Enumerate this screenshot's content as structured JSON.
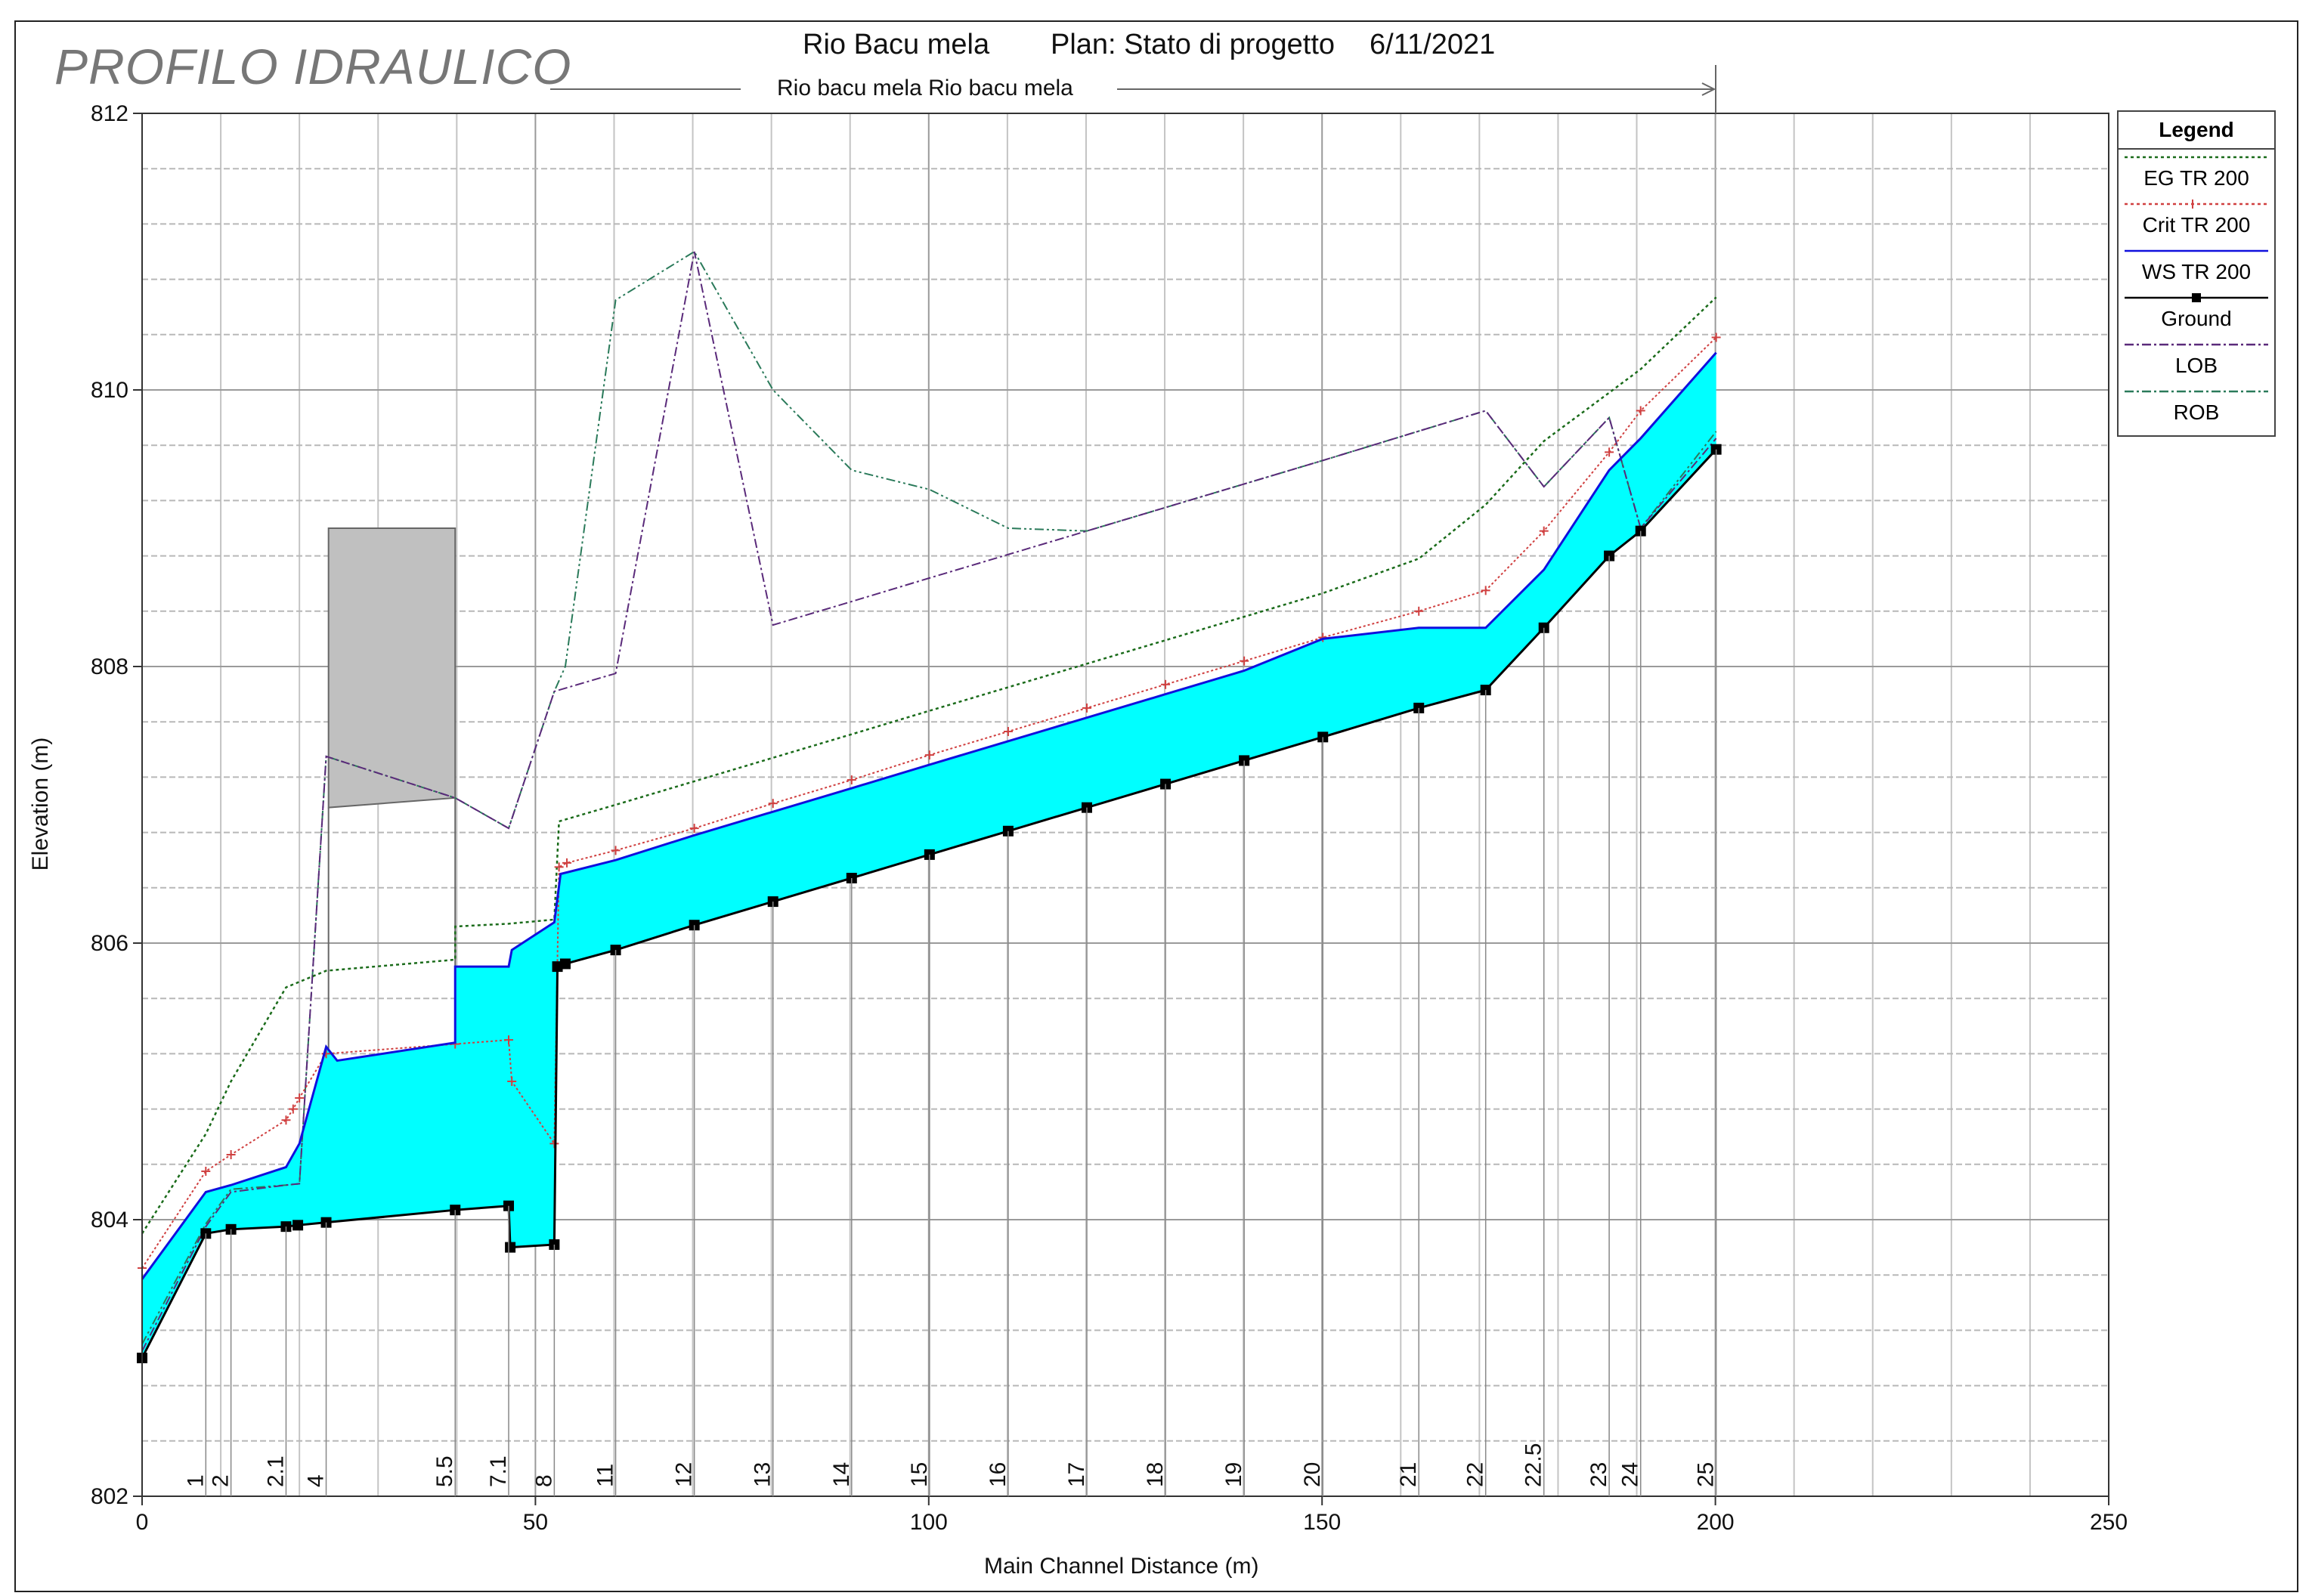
{
  "page_title": "PROFILO IDRAULICO",
  "header": {
    "river": "Rio Bacu mela",
    "plan": "Plan: Stato di progetto",
    "date": "6/11/2021",
    "reach": "Rio bacu mela Rio bacu mela"
  },
  "legend": {
    "title": "Legend",
    "items": [
      {
        "label": "EG  TR 200",
        "color": "#1a6b1a",
        "style": "dotted"
      },
      {
        "label": "Crit  TR 200",
        "color": "#d04040",
        "style": "dotted-plus"
      },
      {
        "label": "WS  TR 200",
        "color": "#1010dd",
        "style": "solid"
      },
      {
        "label": "Ground",
        "color": "#000000",
        "style": "solid-square"
      },
      {
        "label": "LOB",
        "color": "#5a2a7a",
        "style": "dashdot"
      },
      {
        "label": "ROB",
        "color": "#2a7a5a",
        "style": "dashdot"
      }
    ]
  },
  "chart_data": {
    "type": "line",
    "xlabel": "Main Channel Distance (m)",
    "ylabel": "Elevation (m)",
    "xlim": [
      0,
      250
    ],
    "ylim": [
      802,
      812
    ],
    "xticks": [
      0,
      50,
      100,
      150,
      200,
      250
    ],
    "yticks": [
      802,
      804,
      806,
      808,
      810,
      812
    ],
    "grid": true,
    "legend_position": "right",
    "water_fill_color": "#00ffff",
    "structure": {
      "x": [
        23.7,
        39.8
      ],
      "top": 809.0,
      "bottom_left": 806.98,
      "bottom_right": 807.05
    },
    "stations": [
      {
        "label": "1",
        "x": 8.1
      },
      {
        "label": "2",
        "x": 11.3
      },
      {
        "label": "2.1",
        "x": 18.3
      },
      {
        "label": "4",
        "x": 23.4
      },
      {
        "label": "5.5",
        "x": 39.8
      },
      {
        "label": "7.1",
        "x": 46.6
      },
      {
        "label": "8",
        "x": 52.4
      },
      {
        "label": "11",
        "x": 60.2
      },
      {
        "label": "12",
        "x": 70.2
      },
      {
        "label": "13",
        "x": 80.2
      },
      {
        "label": "14",
        "x": 90.2
      },
      {
        "label": "15",
        "x": 100.1
      },
      {
        "label": "16",
        "x": 110.1
      },
      {
        "label": "17",
        "x": 120.1
      },
      {
        "label": "18",
        "x": 130.1
      },
      {
        "label": "19",
        "x": 140.1
      },
      {
        "label": "20",
        "x": 150.1
      },
      {
        "label": "21",
        "x": 162.3
      },
      {
        "label": "22",
        "x": 170.8
      },
      {
        "label": "22.5",
        "x": 178.2
      },
      {
        "label": "23",
        "x": 186.5
      },
      {
        "label": "24",
        "x": 190.5
      },
      {
        "label": "25",
        "x": 200.1
      }
    ],
    "series": [
      {
        "name": "Ground",
        "color": "#000000",
        "marker": "square",
        "points": [
          [
            0,
            803.0
          ],
          [
            8.1,
            803.9
          ],
          [
            11.3,
            803.93
          ],
          [
            18.3,
            803.95
          ],
          [
            19.8,
            803.96
          ],
          [
            23.4,
            803.98
          ],
          [
            39.8,
            804.07
          ],
          [
            46.6,
            804.1
          ],
          [
            46.8,
            803.8
          ],
          [
            52.4,
            803.82
          ],
          [
            52.8,
            805.83
          ],
          [
            53.8,
            805.85
          ],
          [
            60.2,
            805.95
          ],
          [
            70.2,
            806.13
          ],
          [
            80.2,
            806.3
          ],
          [
            90.2,
            806.47
          ],
          [
            100.1,
            806.64
          ],
          [
            110.1,
            806.81
          ],
          [
            120.1,
            806.98
          ],
          [
            130.1,
            807.15
          ],
          [
            140.1,
            807.32
          ],
          [
            150.1,
            807.49
          ],
          [
            162.3,
            807.7
          ],
          [
            170.8,
            807.83
          ],
          [
            178.2,
            808.28
          ],
          [
            186.5,
            808.8
          ],
          [
            190.5,
            808.98
          ],
          [
            200.1,
            809.57
          ]
        ]
      },
      {
        "name": "WS  TR 200",
        "color": "#1010dd",
        "points": [
          [
            0,
            803.57
          ],
          [
            8.1,
            804.2
          ],
          [
            11.3,
            804.25
          ],
          [
            18.3,
            804.38
          ],
          [
            20.0,
            804.55
          ],
          [
            23.4,
            805.25
          ],
          [
            24.8,
            805.15
          ],
          [
            39.8,
            805.28
          ],
          [
            39.8,
            805.83
          ],
          [
            46.6,
            805.83
          ],
          [
            47.0,
            805.95
          ],
          [
            52.4,
            806.15
          ],
          [
            53.2,
            806.5
          ],
          [
            60.2,
            806.6
          ],
          [
            70.2,
            806.78
          ],
          [
            80.2,
            806.95
          ],
          [
            90.2,
            807.12
          ],
          [
            100.1,
            807.29
          ],
          [
            110.1,
            807.46
          ],
          [
            120.1,
            807.63
          ],
          [
            130.1,
            807.8
          ],
          [
            140.1,
            807.97
          ],
          [
            150.1,
            808.2
          ],
          [
            162.3,
            808.28
          ],
          [
            170.8,
            808.28
          ],
          [
            178.2,
            808.7
          ],
          [
            186.5,
            809.42
          ],
          [
            190.5,
            809.65
          ],
          [
            200.1,
            810.27
          ]
        ]
      },
      {
        "name": "Crit  TR 200",
        "color": "#d04040",
        "marker": "plus",
        "points": [
          [
            0,
            803.65
          ],
          [
            8.1,
            804.35
          ],
          [
            11.3,
            804.47
          ],
          [
            18.3,
            804.72
          ],
          [
            19.2,
            804.8
          ],
          [
            20.0,
            804.88
          ],
          [
            23.4,
            805.2
          ],
          [
            39.8,
            805.27
          ],
          [
            46.6,
            805.3
          ],
          [
            47.0,
            805.0
          ],
          [
            52.4,
            804.55
          ],
          [
            53.0,
            806.55
          ],
          [
            54.0,
            806.58
          ],
          [
            60.2,
            806.67
          ],
          [
            70.2,
            806.83
          ],
          [
            80.2,
            807.01
          ],
          [
            90.2,
            807.18
          ],
          [
            100.1,
            807.36
          ],
          [
            110.1,
            807.53
          ],
          [
            120.1,
            807.7
          ],
          [
            130.1,
            807.87
          ],
          [
            140.1,
            808.04
          ],
          [
            150.1,
            808.21
          ],
          [
            162.3,
            808.4
          ],
          [
            170.8,
            808.55
          ],
          [
            178.2,
            808.98
          ],
          [
            186.5,
            809.55
          ],
          [
            190.5,
            809.85
          ],
          [
            200.1,
            810.38
          ]
        ]
      },
      {
        "name": "EG  TR 200",
        "color": "#1a6b1a",
        "points": [
          [
            0,
            803.9
          ],
          [
            8.1,
            804.62
          ],
          [
            11.3,
            805.0
          ],
          [
            18.3,
            805.68
          ],
          [
            23.4,
            805.8
          ],
          [
            39.8,
            805.88
          ],
          [
            39.8,
            806.12
          ],
          [
            46.6,
            806.14
          ],
          [
            52.4,
            806.17
          ],
          [
            53.0,
            806.88
          ],
          [
            60.2,
            807.0
          ],
          [
            70.2,
            807.17
          ],
          [
            80.2,
            807.34
          ],
          [
            90.2,
            807.51
          ],
          [
            100.1,
            807.68
          ],
          [
            110.1,
            807.85
          ],
          [
            120.1,
            808.02
          ],
          [
            130.1,
            808.19
          ],
          [
            140.1,
            808.36
          ],
          [
            150.1,
            808.53
          ],
          [
            162.3,
            808.78
          ],
          [
            170.8,
            809.17
          ],
          [
            178.2,
            809.63
          ],
          [
            186.5,
            809.98
          ],
          [
            190.5,
            810.15
          ],
          [
            200.1,
            810.67
          ]
        ]
      },
      {
        "name": "LOB",
        "color": "#5a2a7a",
        "points": [
          [
            0,
            803.05
          ],
          [
            8.1,
            803.95
          ],
          [
            11.3,
            804.2
          ],
          [
            18.3,
            804.25
          ],
          [
            20.0,
            804.26
          ],
          [
            23.4,
            807.35
          ],
          [
            39.8,
            807.05
          ],
          [
            46.6,
            806.83
          ],
          [
            52.4,
            807.82
          ],
          [
            60.2,
            807.95
          ],
          [
            70.2,
            811.0
          ],
          [
            80.2,
            808.3
          ],
          [
            90.2,
            808.47
          ],
          [
            100.1,
            808.64
          ],
          [
            110.1,
            808.81
          ],
          [
            120.1,
            808.98
          ],
          [
            130.1,
            809.15
          ],
          [
            140.1,
            809.32
          ],
          [
            150.1,
            809.49
          ],
          [
            170.8,
            809.85
          ],
          [
            178.2,
            809.3
          ],
          [
            186.5,
            809.8
          ],
          [
            190.5,
            809.0
          ],
          [
            200.1,
            809.65
          ]
        ]
      },
      {
        "name": "ROB",
        "color": "#2a7a5a",
        "points": [
          [
            0,
            803.1
          ],
          [
            8.1,
            803.97
          ],
          [
            11.3,
            804.22
          ],
          [
            18.3,
            804.25
          ],
          [
            20.0,
            804.26
          ],
          [
            23.4,
            807.35
          ],
          [
            39.8,
            807.05
          ],
          [
            46.6,
            806.83
          ],
          [
            52.4,
            807.82
          ],
          [
            53.8,
            808.0
          ],
          [
            60.2,
            810.65
          ],
          [
            70.2,
            811.0
          ],
          [
            80.2,
            810.0
          ],
          [
            90.2,
            809.42
          ],
          [
            100.1,
            809.28
          ],
          [
            110.1,
            809.0
          ],
          [
            120.1,
            808.98
          ],
          [
            130.1,
            809.15
          ],
          [
            140.1,
            809.32
          ],
          [
            150.1,
            809.49
          ],
          [
            170.8,
            809.85
          ],
          [
            178.2,
            809.3
          ],
          [
            186.5,
            809.8
          ],
          [
            190.5,
            809.0
          ],
          [
            200.1,
            809.7
          ]
        ]
      }
    ]
  }
}
